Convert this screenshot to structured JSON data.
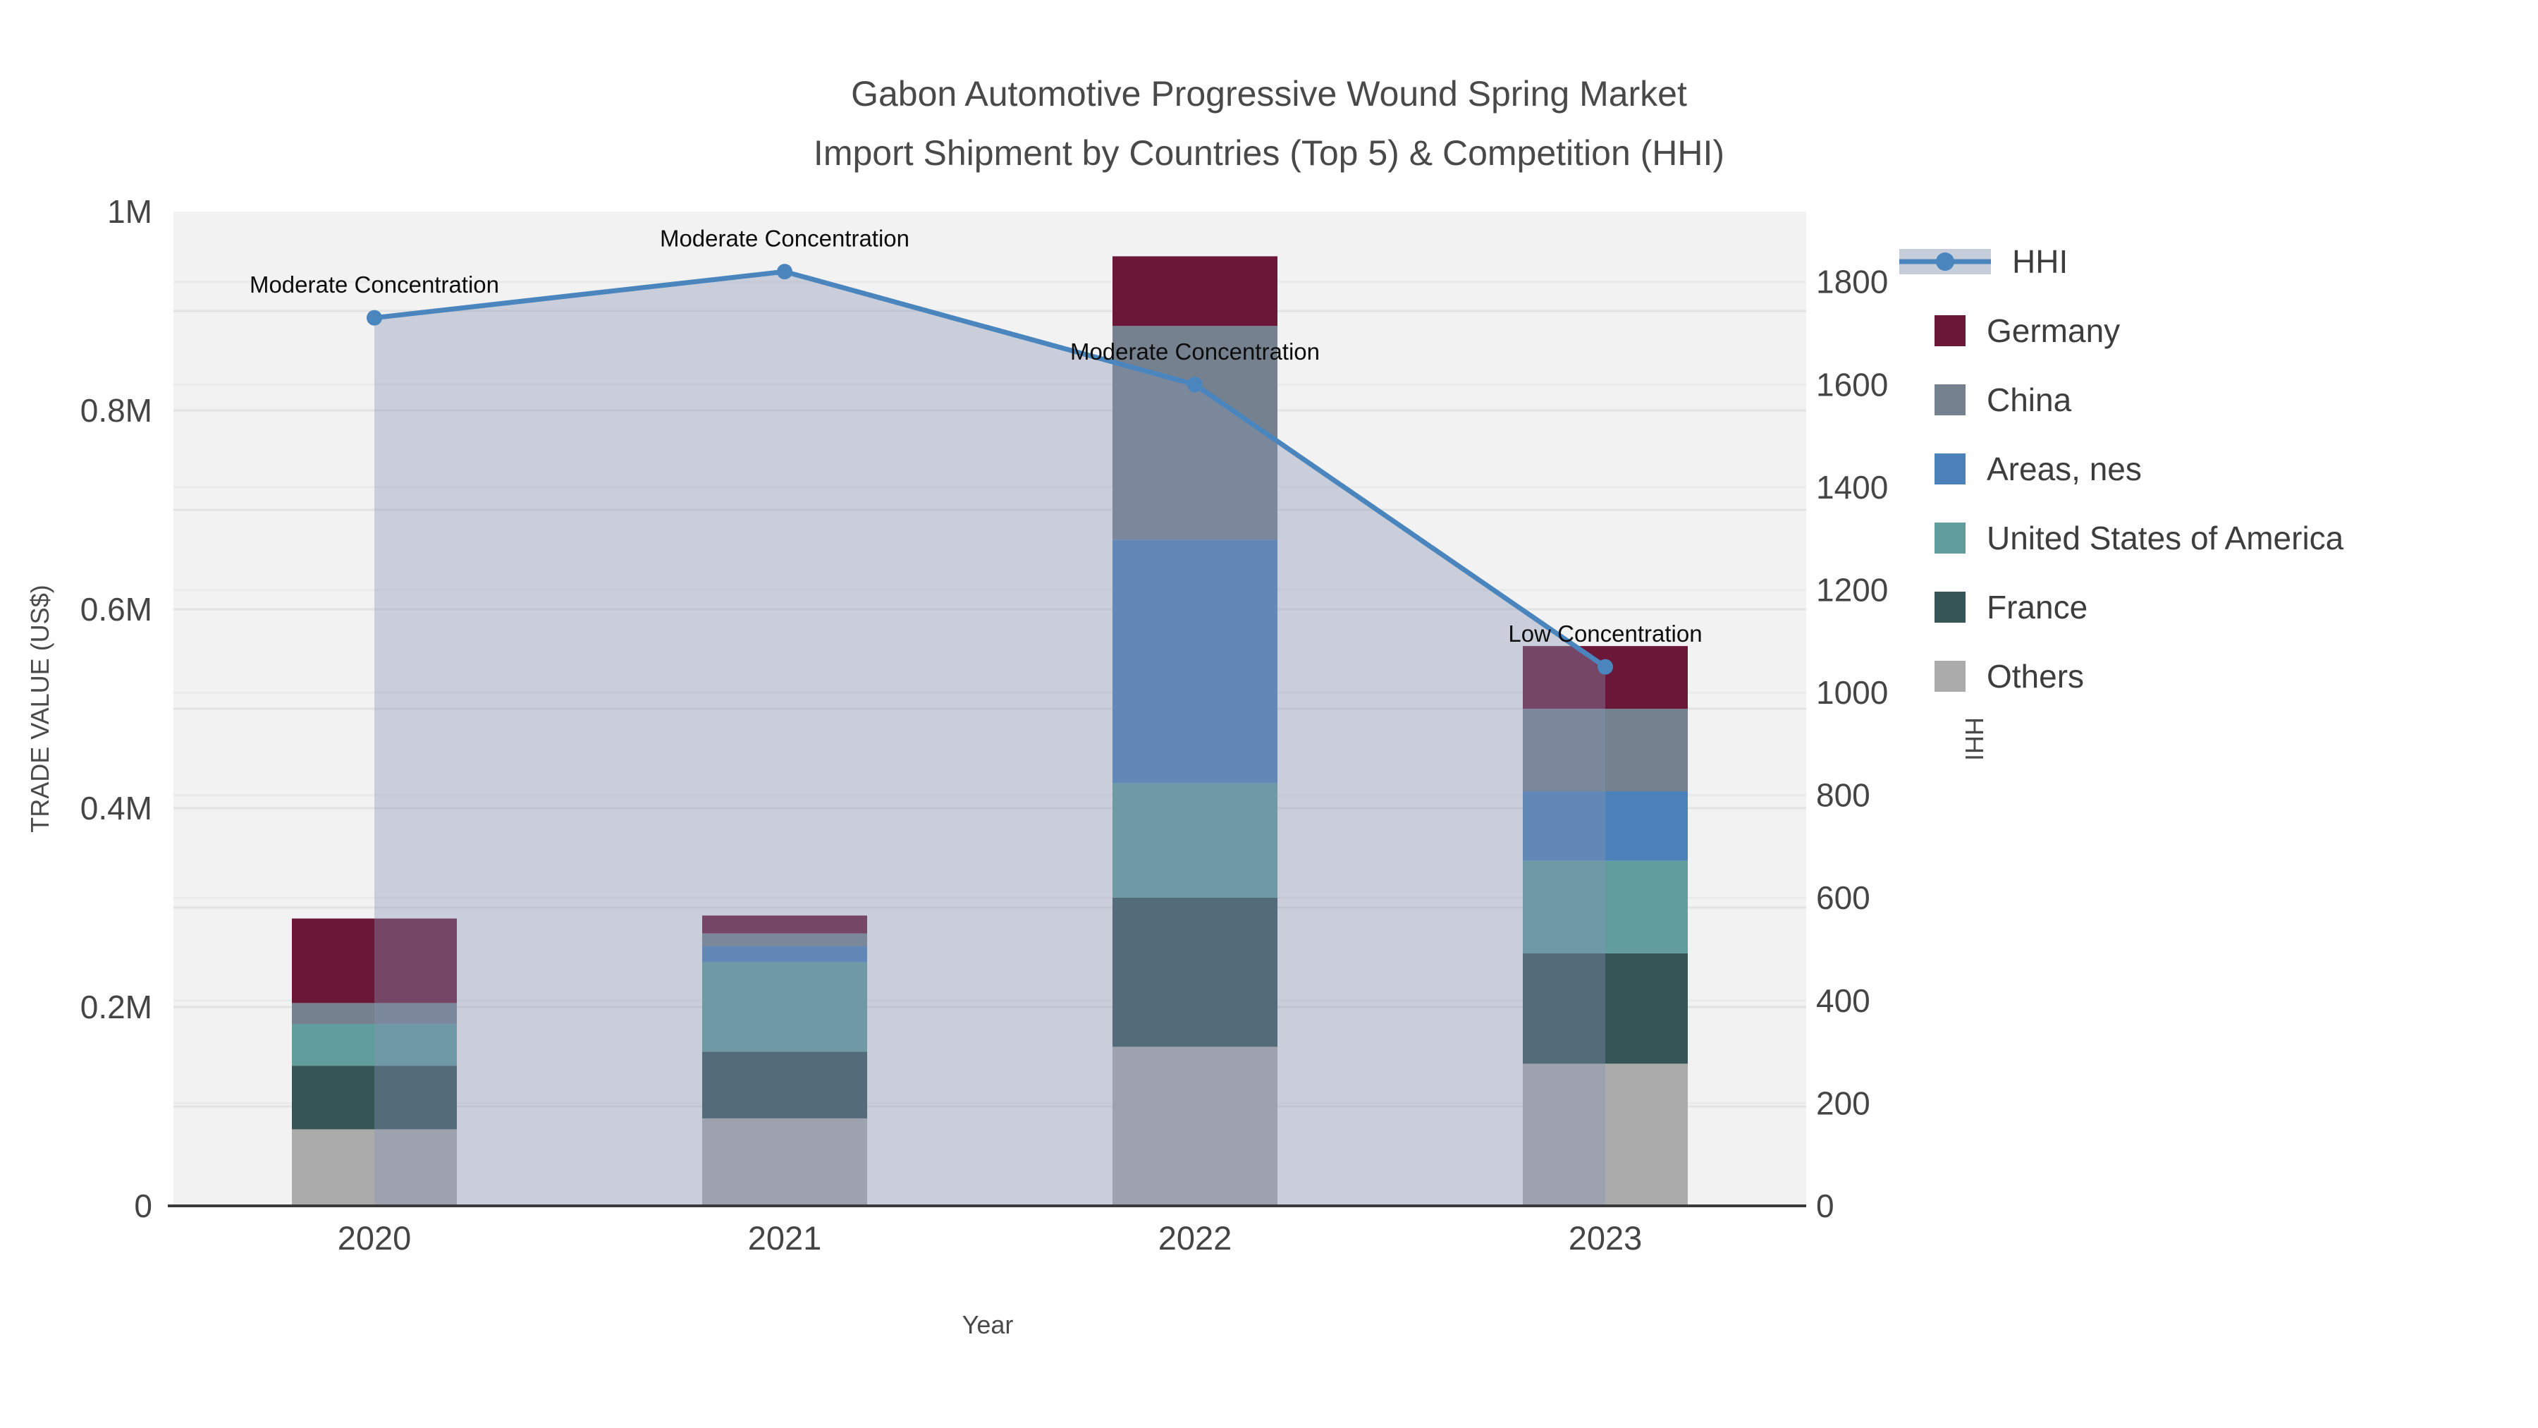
{
  "title": {
    "line1": "Gabon Automotive Progressive Wound Spring Market",
    "line2": "Import Shipment by Countries (Top 5) & Competition (HHI)"
  },
  "axes": {
    "x_title": "Year",
    "y_left_title": "TRADE VALUE (US$)",
    "y_right_title": "HHI",
    "x_tick_labels": [
      "2020",
      "2021",
      "2022",
      "2023"
    ],
    "y_left_ticks": {
      "labels": [
        "0",
        "0.2M",
        "0.4M",
        "0.6M",
        "0.8M",
        "1M"
      ],
      "values": [
        0,
        200000,
        400000,
        600000,
        800000,
        1000000
      ]
    },
    "y_right_ticks": {
      "labels": [
        "0",
        "200",
        "400",
        "600",
        "800",
        "1000",
        "1200",
        "1400",
        "1600",
        "1800"
      ],
      "values": [
        0,
        200,
        400,
        600,
        800,
        1000,
        1200,
        1400,
        1600,
        1800
      ]
    }
  },
  "legend": {
    "items": [
      {
        "label": "HHI",
        "type": "line",
        "line_color": "#4A85BE",
        "band_color": "#C6CDDA"
      },
      {
        "label": "Germany",
        "type": "swatch",
        "color": "#6B1738"
      },
      {
        "label": "China",
        "type": "swatch",
        "color": "#75818F"
      },
      {
        "label": "Areas, nes",
        "type": "swatch",
        "color": "#4C82BA"
      },
      {
        "label": "United States of America",
        "type": "swatch",
        "color": "#629D9D"
      },
      {
        "label": "France",
        "type": "swatch",
        "color": "#365556"
      },
      {
        "label": "Others",
        "type": "swatch",
        "color": "#ABABAB"
      }
    ]
  },
  "chart_data": [
    {
      "type": "bar",
      "stacked": true,
      "categories": [
        "2020",
        "2021",
        "2022",
        "2023"
      ],
      "xlabel": "Year",
      "ylabel": "TRADE VALUE (US$)",
      "ylim": [
        0,
        1000000
      ],
      "grid": true,
      "series": [
        {
          "name": "Germany",
          "color": "#6B1738",
          "values": [
            85000,
            18000,
            70000,
            63000
          ]
        },
        {
          "name": "China",
          "color": "#75818F",
          "values": [
            21000,
            13000,
            215000,
            83000
          ]
        },
        {
          "name": "Areas, nes",
          "color": "#4C82BA",
          "values": [
            0,
            16000,
            245000,
            70000
          ]
        },
        {
          "name": "United States of America",
          "color": "#629D9D",
          "values": [
            42000,
            90000,
            115000,
            93000
          ]
        },
        {
          "name": "France",
          "color": "#365556",
          "values": [
            64000,
            67000,
            150000,
            111000
          ]
        },
        {
          "name": "Others",
          "color": "#ABABAB",
          "values": [
            77000,
            88000,
            160000,
            143000
          ]
        }
      ],
      "stack_order_bottom_to_top": [
        "Others",
        "France",
        "United States of America",
        "Areas, nes",
        "China",
        "Germany"
      ],
      "totals": [
        289000,
        292000,
        955000,
        563000
      ]
    },
    {
      "type": "line",
      "name": "HHI",
      "color": "#4A85BE",
      "marker": "circle",
      "area_fill": "rgba(134,147,179,0.38)",
      "x": [
        "2020",
        "2021",
        "2022",
        "2023"
      ],
      "values": [
        1730,
        1820,
        1600,
        1050
      ],
      "ylabel": "HHI",
      "ylim": [
        0,
        1937
      ],
      "legend_position": "right",
      "annotations": [
        {
          "x": "2020",
          "text": "Moderate Concentration"
        },
        {
          "x": "2021",
          "text": "Moderate Concentration"
        },
        {
          "x": "2022",
          "text": "Moderate Concentration"
        },
        {
          "x": "2023",
          "text": "Low Concentration"
        }
      ]
    }
  ]
}
